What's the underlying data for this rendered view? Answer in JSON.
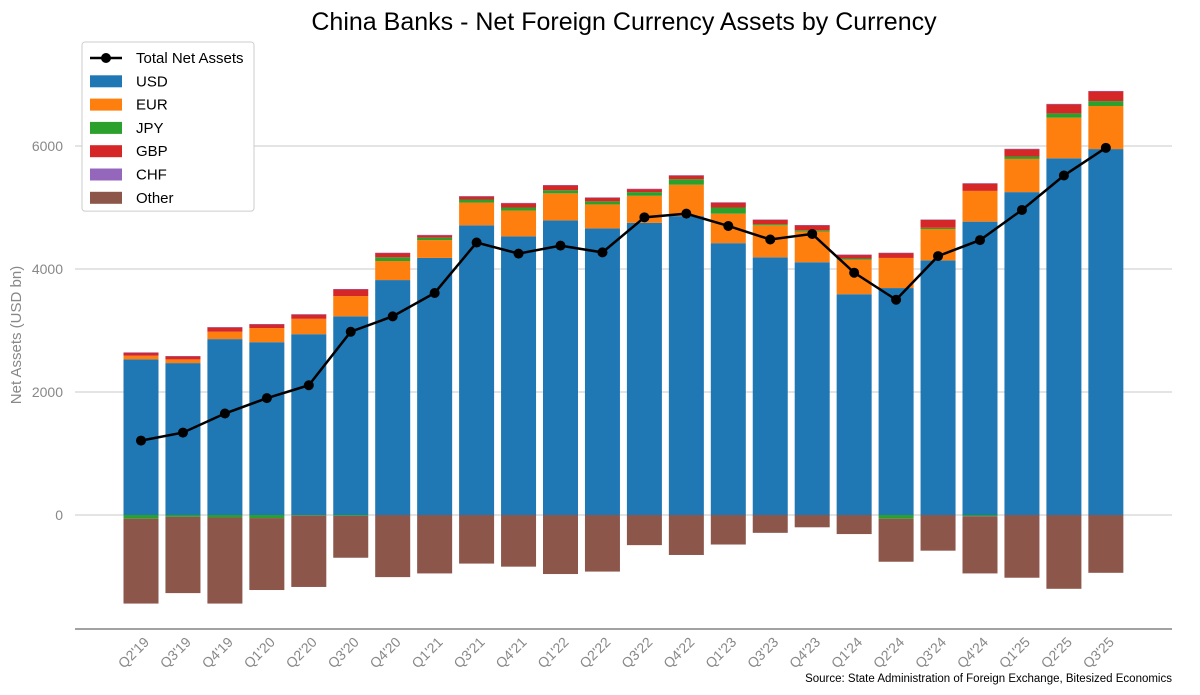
{
  "chart_data": {
    "type": "bar",
    "title": "China Banks - Net Foreign Currency Assets by Currency",
    "ylabel": "Net Assets (USD bn)",
    "xlabel": "",
    "source": "Source: State Administration of Foreign Exchange, Bitesized Economics",
    "ylim": [
      -1850,
      7200
    ],
    "yticks": [
      0,
      2000,
      4000,
      6000
    ],
    "grid": "horizontal",
    "legend_position": "top-left",
    "categories": [
      "Q2'19",
      "Q3'19",
      "Q4'19",
      "Q1'20",
      "Q2'20",
      "Q3'20",
      "Q4'20",
      "Q1'21",
      "Q3'21",
      "Q4'21",
      "Q1'22",
      "Q2'22",
      "Q3'22",
      "Q4'22",
      "Q1'23",
      "Q3'23",
      "Q4'23",
      "Q1'24",
      "Q2'24",
      "Q3'24",
      "Q4'24",
      "Q1'25",
      "Q2'25",
      "Q3'25"
    ],
    "series": [
      {
        "name": "USD",
        "color": "#1f77b4",
        "values": [
          2530,
          2470,
          2860,
          2810,
          2940,
          3230,
          3820,
          4180,
          4710,
          4530,
          4790,
          4660,
          4750,
          4860,
          4420,
          4190,
          4110,
          3590,
          3690,
          4140,
          4770,
          5250,
          5800,
          5950
        ]
      },
      {
        "name": "EUR",
        "color": "#ff7f0e",
        "values": [
          60,
          60,
          120,
          230,
          250,
          330,
          310,
          290,
          370,
          420,
          440,
          390,
          440,
          510,
          480,
          520,
          500,
          560,
          490,
          510,
          500,
          540,
          660,
          700
        ]
      },
      {
        "name": "JPY",
        "color": "#2ca02c",
        "values": [
          -60,
          -30,
          -40,
          -50,
          -10,
          -15,
          60,
          40,
          50,
          50,
          50,
          50,
          60,
          90,
          100,
          20,
          20,
          20,
          -60,
          20,
          -20,
          40,
          70,
          80
        ]
      },
      {
        "name": "GBP",
        "color": "#d62728",
        "values": [
          50,
          50,
          70,
          60,
          70,
          110,
          70,
          40,
          50,
          70,
          80,
          60,
          50,
          60,
          80,
          70,
          80,
          60,
          80,
          130,
          120,
          120,
          150,
          160
        ]
      },
      {
        "name": "CHF",
        "color": "#9467bd",
        "values": [
          5,
          5,
          5,
          5,
          5,
          5,
          5,
          5,
          5,
          5,
          5,
          5,
          5,
          5,
          5,
          5,
          5,
          5,
          5,
          5,
          5,
          5,
          5,
          5
        ]
      },
      {
        "name": "Other",
        "color": "#8c564b",
        "values": [
          -1380,
          -1240,
          -1400,
          -1170,
          -1160,
          -680,
          -1010,
          -950,
          -790,
          -840,
          -960,
          -920,
          -490,
          -650,
          -480,
          -290,
          -200,
          -310,
          -700,
          -580,
          -930,
          -1020,
          -1200,
          -940
        ]
      }
    ],
    "line": {
      "name": "Total Net Assets",
      "color": "#000000",
      "values": [
        1210,
        1340,
        1650,
        1900,
        2110,
        2980,
        3230,
        3610,
        4430,
        4250,
        4380,
        4270,
        4840,
        4900,
        4700,
        4480,
        4570,
        3940,
        3500,
        4210,
        4470,
        4960,
        5520,
        5970
      ]
    }
  }
}
